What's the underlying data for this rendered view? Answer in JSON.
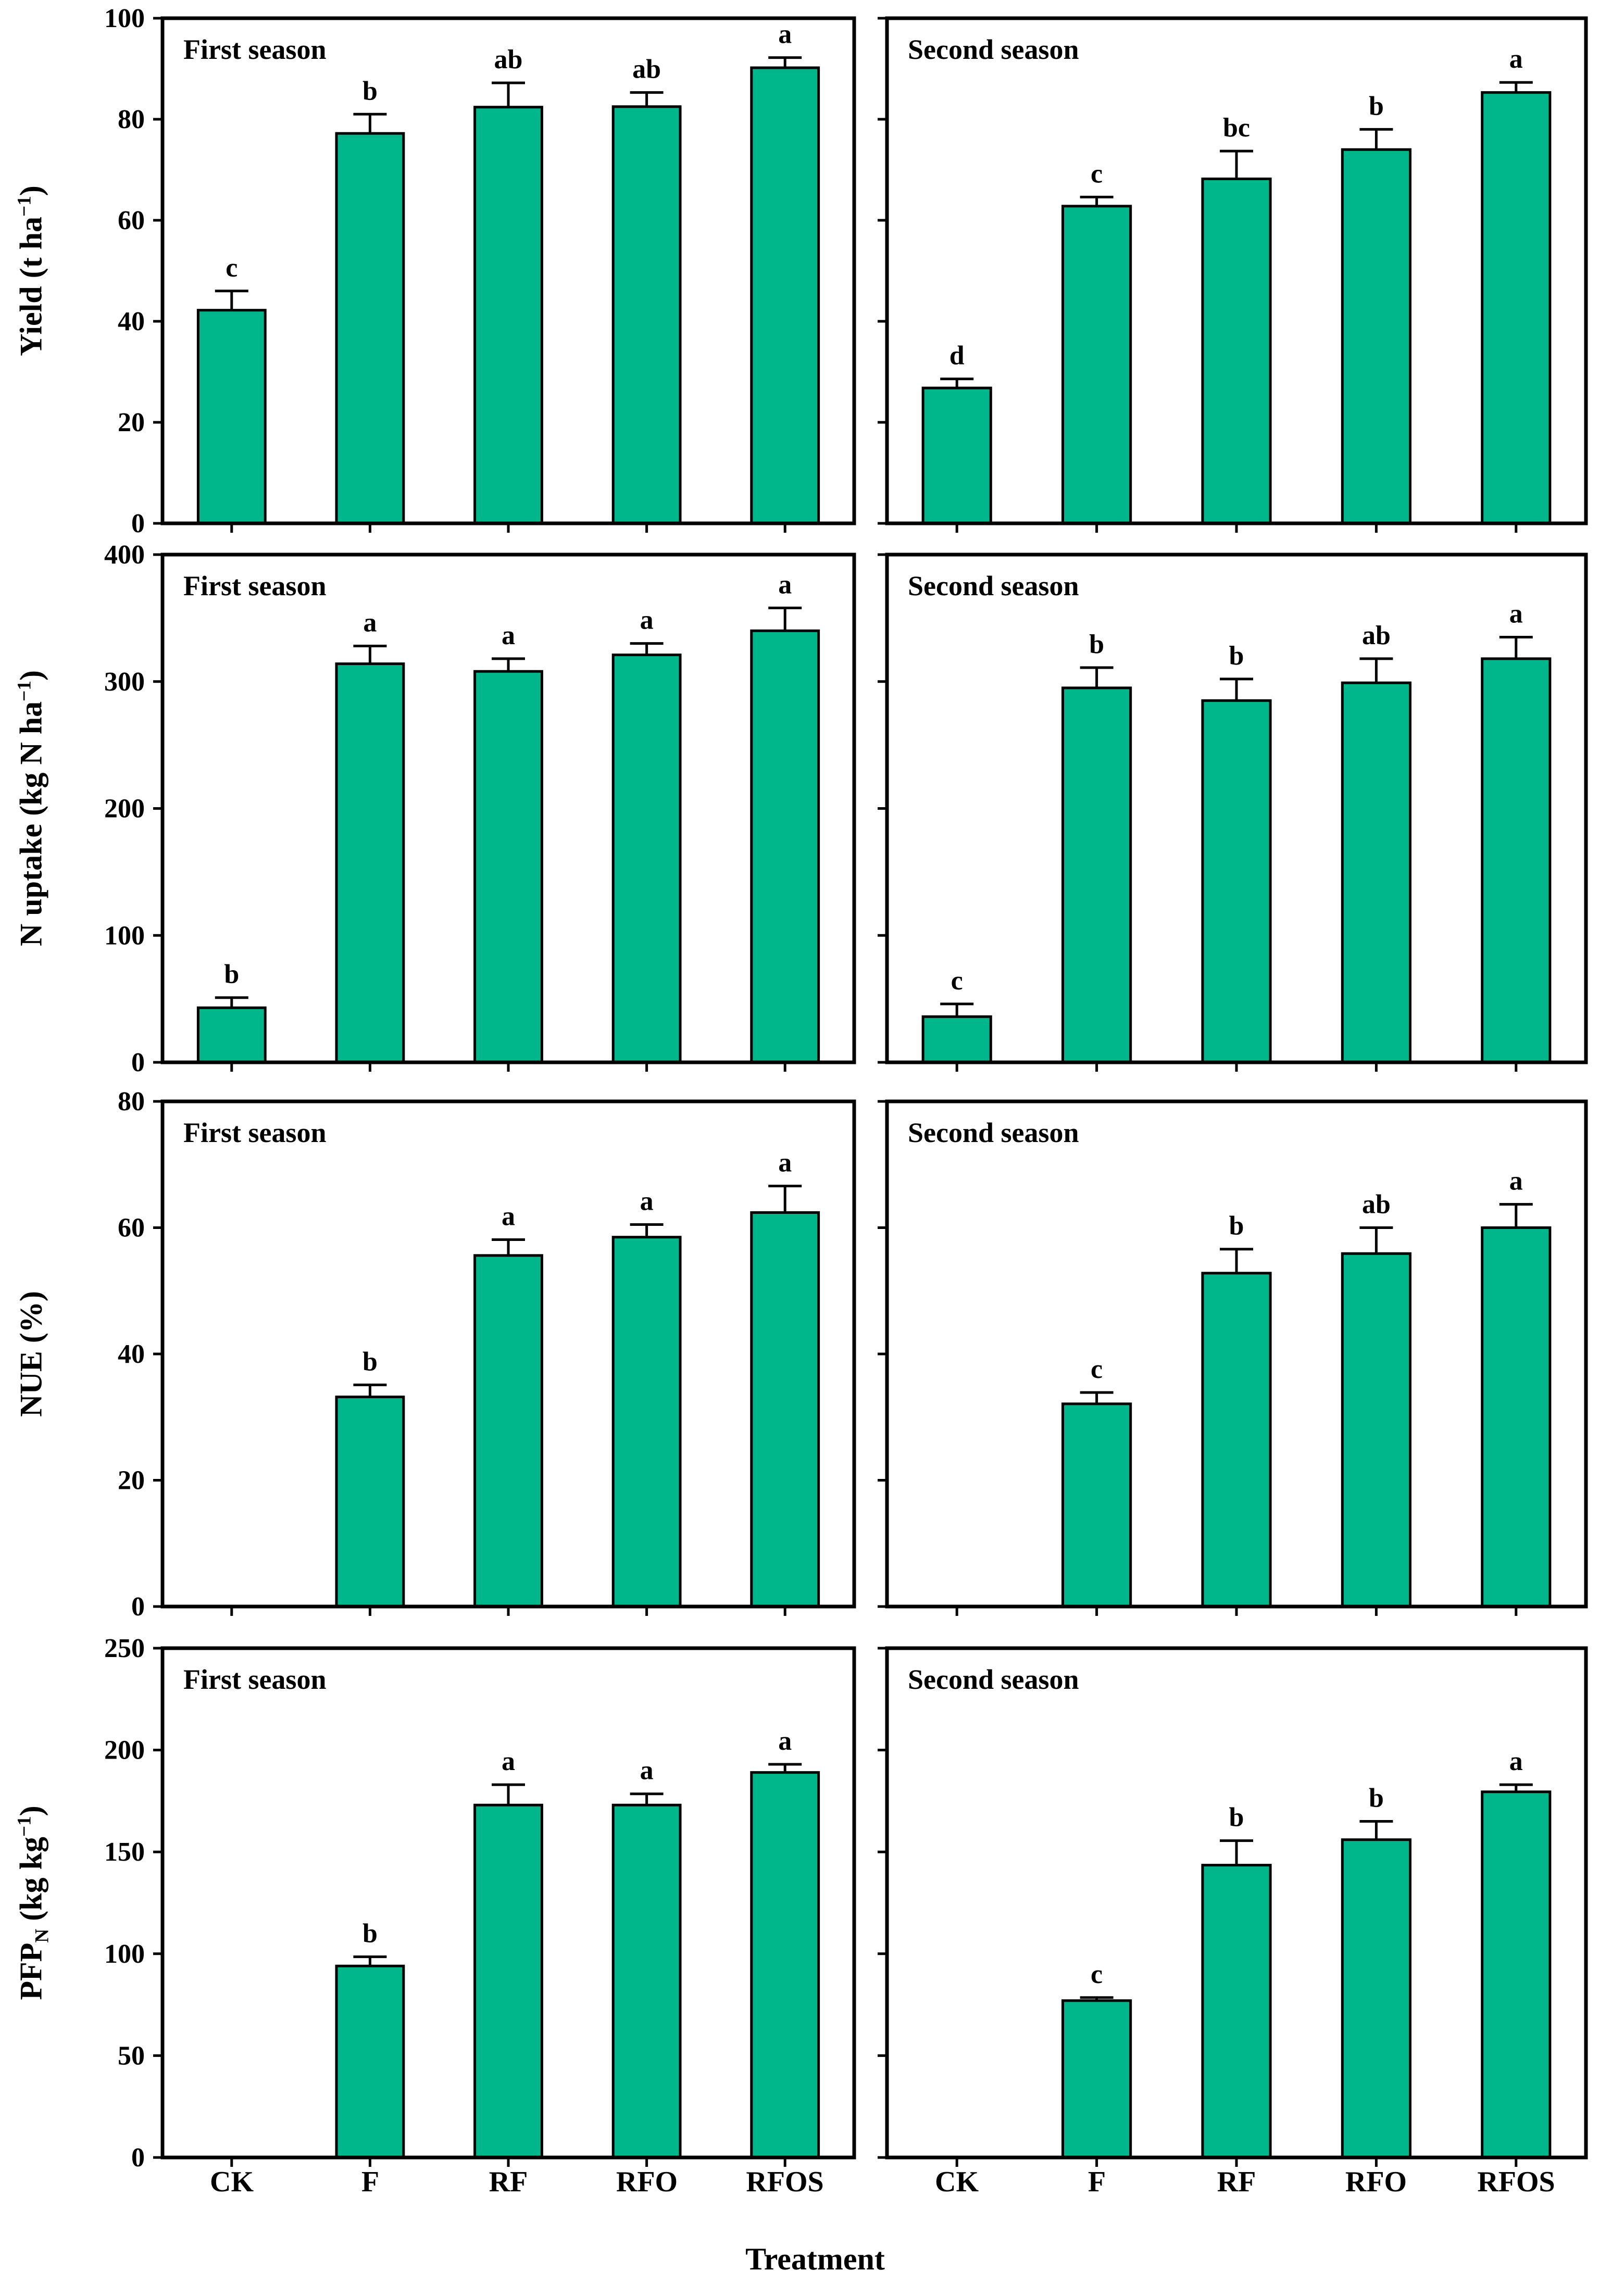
{
  "figure_title": "Treatment response bar charts, two seasons",
  "chart_data": {
    "type": "bar",
    "categories": [
      "CK",
      "F",
      "RF",
      "RFO",
      "RFOS"
    ],
    "xlabel": "Treatment",
    "bar_color": "#00B78C",
    "axis_color": "#000000",
    "legend": "none",
    "grid": "off",
    "panels": [
      {
        "row": 0,
        "col": 0,
        "label": "First season",
        "ylabel": "Yield (t ha−1)",
        "ylabel_parts": {
          "base": "Yield (t ha",
          "sup": "−1",
          "close": ")"
        },
        "ylim": [
          0,
          100
        ],
        "yticks": [
          0,
          20,
          40,
          60,
          80,
          100
        ],
        "values": [
          42.2,
          77.2,
          82.4,
          82.5,
          90.2
        ],
        "errors": [
          3.8,
          3.8,
          4.8,
          2.8,
          2.0
        ],
        "letters": [
          "c",
          "b",
          "ab",
          "ab",
          "a"
        ]
      },
      {
        "row": 0,
        "col": 1,
        "label": "Second season",
        "ylabel": "Yield (t ha−1)",
        "ylim": [
          0,
          100
        ],
        "yticks": [
          0,
          20,
          40,
          60,
          80,
          100
        ],
        "values": [
          26.8,
          62.8,
          68.2,
          74.0,
          85.3
        ],
        "errors": [
          1.8,
          1.8,
          5.5,
          4.0,
          2.0
        ],
        "letters": [
          "d",
          "c",
          "bc",
          "b",
          "a"
        ]
      },
      {
        "row": 1,
        "col": 0,
        "label": "First season",
        "ylabel": "N uptake (kg N ha−1)",
        "ylabel_parts": {
          "base": "N uptake (kg N ha",
          "sup": "−1",
          "close": ")"
        },
        "ylim": [
          0,
          400
        ],
        "yticks": [
          0,
          100,
          200,
          300,
          400
        ],
        "values": [
          43,
          314,
          308,
          321,
          340
        ],
        "errors": [
          8,
          14,
          10,
          9,
          18
        ],
        "letters": [
          "b",
          "a",
          "a",
          "a",
          "a"
        ]
      },
      {
        "row": 1,
        "col": 1,
        "label": "Second season",
        "ylabel": "N uptake (kg N ha−1)",
        "ylim": [
          0,
          400
        ],
        "yticks": [
          0,
          100,
          200,
          300,
          400
        ],
        "values": [
          36,
          295,
          285,
          299,
          318
        ],
        "errors": [
          10,
          16,
          17,
          19,
          17
        ],
        "letters": [
          "c",
          "b",
          "b",
          "ab",
          "a"
        ]
      },
      {
        "row": 2,
        "col": 0,
        "label": "First season",
        "ylabel": "NUE (%)",
        "ylabel_parts": {
          "base": "NUE (%)"
        },
        "ylim": [
          0,
          80
        ],
        "yticks": [
          0,
          20,
          40,
          60,
          80
        ],
        "values": [
          0,
          33.2,
          55.6,
          58.5,
          62.4
        ],
        "errors": [
          0,
          1.9,
          2.5,
          2.0,
          4.2
        ],
        "letters": [
          "",
          "b",
          "a",
          "a",
          "a"
        ]
      },
      {
        "row": 2,
        "col": 1,
        "label": "Second season",
        "ylabel": "NUE (%)",
        "ylim": [
          0,
          80
        ],
        "yticks": [
          0,
          20,
          40,
          60,
          80
        ],
        "values": [
          0,
          32.1,
          52.8,
          55.9,
          60.0
        ],
        "errors": [
          0,
          1.8,
          3.8,
          4.1,
          3.7
        ],
        "letters": [
          "",
          "c",
          "b",
          "ab",
          "a"
        ]
      },
      {
        "row": 3,
        "col": 0,
        "label": "First season",
        "ylabel": "PFPN (kg kg−1)",
        "ylabel_parts": {
          "base": "PFP",
          "sub": "N",
          "mid": " (kg kg",
          "sup": "−1",
          "close": ")"
        },
        "ylim": [
          0,
          250
        ],
        "yticks": [
          0,
          50,
          100,
          150,
          200,
          250
        ],
        "values": [
          0,
          94,
          173,
          173,
          189
        ],
        "errors": [
          0,
          4.5,
          10,
          5.5,
          4.0
        ],
        "letters": [
          "",
          "b",
          "a",
          "a",
          "a"
        ]
      },
      {
        "row": 3,
        "col": 1,
        "label": "Second season",
        "ylabel": "PFPN (kg kg−1)",
        "ylim": [
          0,
          250
        ],
        "yticks": [
          0,
          50,
          100,
          150,
          200,
          250
        ],
        "values": [
          0,
          77,
          143.5,
          156,
          179.5
        ],
        "errors": [
          0,
          1.5,
          12,
          9,
          3.5
        ],
        "letters": [
          "",
          "c",
          "b",
          "b",
          "a"
        ]
      }
    ]
  }
}
